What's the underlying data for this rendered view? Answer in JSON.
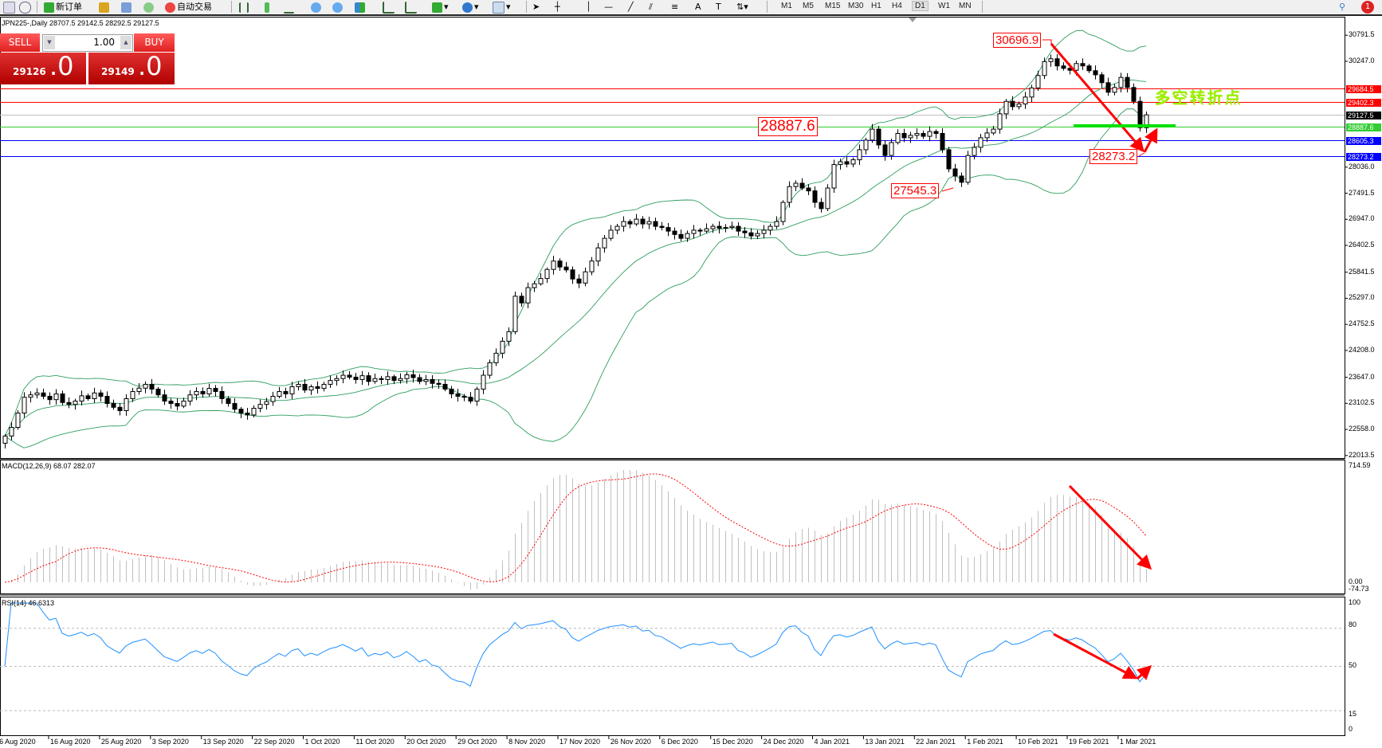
{
  "toolbar": {
    "new_order_label": "新订单",
    "autotrade_label": "自动交易",
    "timeframes": [
      "M1",
      "M5",
      "M15",
      "M30",
      "H1",
      "H4",
      "D1",
      "W1",
      "MN"
    ],
    "active_timeframe": "D1",
    "notification_count": "1"
  },
  "chart": {
    "title": "JPN225-,Daily  28707.5 29142.5 28292.5 29127.5"
  },
  "trade_panel": {
    "sell_label": "SELL",
    "buy_label": "BUY",
    "lot_value": "1.00",
    "sell_price_main": "29126",
    "sell_price_frac": ".0",
    "buy_price_main": "29149",
    "buy_price_frac": ".0",
    "color": "#d42020"
  },
  "price_axis": {
    "ticks": [
      "30791.5",
      "30247.0",
      "28036.0",
      "27491.5",
      "26947.0",
      "26402.5",
      "25841.5",
      "25297.0",
      "24752.5",
      "24208.0",
      "23647.0",
      "23102.5",
      "22558.0",
      "22013.5"
    ],
    "range": [
      22013.5,
      30791.5
    ]
  },
  "horizontal_lines": [
    {
      "value": "29684.5",
      "color": "#ff0000"
    },
    {
      "value": "29402.3",
      "color": "#ff0000"
    },
    {
      "value": "29127.5",
      "color": "#000000",
      "line_color": "#c0c0c0"
    },
    {
      "value": "28887.6",
      "color": "#32cd32"
    },
    {
      "value": "28605.3",
      "color": "#0000ff"
    },
    {
      "value": "28273.2",
      "color": "#0000ff"
    }
  ],
  "annotations": {
    "high_label": "30696.9",
    "mid_label": "28887.6",
    "low_label": "27545.3",
    "recent_low_label": "28273.2",
    "turning_point_text": "多空转折点"
  },
  "date_axis": [
    "6 Aug 2020",
    "16 Aug 2020",
    "25 Aug 2020",
    "3 Sep 2020",
    "13 Sep 2020",
    "22 Sep 2020",
    "1 Oct 2020",
    "11 Oct 2020",
    "20 Oct 2020",
    "29 Oct 2020",
    "8 Nov 2020",
    "17 Nov 2020",
    "26 Nov 2020",
    "6 Dec 2020",
    "15 Dec 2020",
    "24 Dec 2020",
    "4 Jan 2021",
    "13 Jan 2021",
    "22 Jan 2021",
    "1 Feb 2021",
    "10 Feb 2021",
    "19 Feb 2021",
    "1 Mar 2021"
  ],
  "macd": {
    "label": "MACD(12,26,9) 68.07 282.07",
    "axis": [
      "714.59",
      "0.00",
      "-74.73"
    ],
    "range": [
      -74.73,
      714.59
    ]
  },
  "rsi": {
    "label": "RSI(14) 46.6313",
    "axis": [
      "100",
      "80",
      "50",
      "15",
      "0"
    ]
  },
  "closes": [
    22420,
    22600,
    22900,
    23230,
    23280,
    23320,
    23250,
    23180,
    23300,
    23120,
    23080,
    23150,
    23260,
    23200,
    23320,
    23250,
    23100,
    23020,
    22950,
    23200,
    23350,
    23420,
    23500,
    23400,
    23280,
    23150,
    23100,
    23045,
    23150,
    23280,
    23350,
    23300,
    23415,
    23350,
    23200,
    23100,
    22980,
    22900,
    22860,
    23000,
    23080,
    23140,
    23250,
    23350,
    23300,
    23450,
    23500,
    23380,
    23450,
    23415,
    23500,
    23580,
    23620,
    23690,
    23650,
    23600,
    23680,
    23560,
    23620,
    23600,
    23660,
    23580,
    23620,
    23700,
    23640,
    23560,
    23600,
    23520,
    23500,
    23400,
    23300,
    23250,
    23230,
    23150,
    23400,
    23690,
    23950,
    24150,
    24400,
    24600,
    25340,
    25200,
    25520,
    25600,
    25710,
    25900,
    26075,
    25950,
    25890,
    25700,
    25615,
    25850,
    26075,
    26350,
    26550,
    26720,
    26800,
    26900,
    26850,
    26950,
    26850,
    26900,
    26800,
    26775,
    26700,
    26630,
    26550,
    26650,
    26720,
    26700,
    26750,
    26800,
    26760,
    26775,
    26800,
    26700,
    26665,
    26600,
    26650,
    26720,
    26800,
    26900,
    27300,
    27630,
    27700,
    27600,
    27540,
    27300,
    27170,
    27600,
    28090,
    28150,
    28100,
    28190,
    28400,
    28600,
    28830,
    28500,
    28280,
    28550,
    28740,
    28650,
    28700,
    28740,
    28680,
    28780,
    28740,
    28400,
    28000,
    27850,
    27720,
    28280,
    28450,
    28650,
    28750,
    28830,
    29150,
    29410,
    29300,
    29355,
    29500,
    29690,
    29950,
    30240,
    30300,
    30150,
    30100,
    30060,
    30200,
    30150,
    30050,
    29965,
    29800,
    29600,
    29700,
    29910,
    29700,
    29410,
    28860,
    29127.5
  ]
}
